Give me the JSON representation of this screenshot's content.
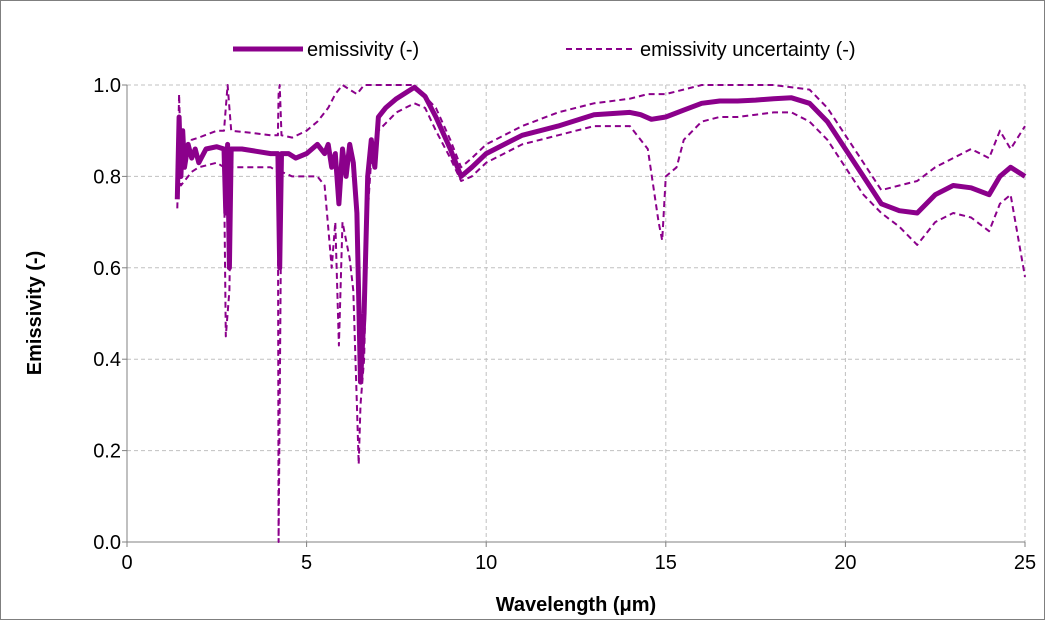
{
  "chart_data": {
    "type": "line",
    "title": "",
    "xlabel": "Wavelength (μm)",
    "ylabel": "Emissivity (-)",
    "xlim": [
      0,
      25
    ],
    "ylim": [
      0,
      1.0
    ],
    "x_ticks": [
      0,
      5,
      10,
      15,
      20,
      25
    ],
    "y_ticks": [
      0.0,
      0.2,
      0.4,
      0.6,
      0.8,
      1.0
    ],
    "x_tick_labels": [
      "0",
      "5",
      "10",
      "15",
      "20",
      "25"
    ],
    "y_tick_labels": [
      "0.0",
      "0.2",
      "0.4",
      "0.6",
      "0.8",
      "1.0"
    ],
    "grid": true,
    "legend_position": "top",
    "colors": {
      "series": "#8b008b",
      "grid": "#c0c0c0",
      "axis": "#808080"
    },
    "series": [
      {
        "name": "emissivity (-)",
        "style": "solid",
        "points": [
          [
            1.4,
            0.75
          ],
          [
            1.45,
            0.93
          ],
          [
            1.5,
            0.8
          ],
          [
            1.55,
            0.9
          ],
          [
            1.6,
            0.82
          ],
          [
            1.7,
            0.87
          ],
          [
            1.8,
            0.84
          ],
          [
            1.9,
            0.86
          ],
          [
            2.0,
            0.83
          ],
          [
            2.2,
            0.86
          ],
          [
            2.5,
            0.865
          ],
          [
            2.7,
            0.86
          ],
          [
            2.75,
            0.72
          ],
          [
            2.8,
            0.87
          ],
          [
            2.85,
            0.6
          ],
          [
            2.9,
            0.86
          ],
          [
            3.2,
            0.86
          ],
          [
            3.6,
            0.855
          ],
          [
            4.0,
            0.85
          ],
          [
            4.2,
            0.85
          ],
          [
            4.25,
            0.6
          ],
          [
            4.3,
            0.85
          ],
          [
            4.5,
            0.85
          ],
          [
            4.7,
            0.84
          ],
          [
            5.0,
            0.85
          ],
          [
            5.3,
            0.87
          ],
          [
            5.5,
            0.85
          ],
          [
            5.6,
            0.87
          ],
          [
            5.7,
            0.82
          ],
          [
            5.8,
            0.85
          ],
          [
            5.9,
            0.74
          ],
          [
            6.0,
            0.86
          ],
          [
            6.1,
            0.8
          ],
          [
            6.2,
            0.87
          ],
          [
            6.3,
            0.83
          ],
          [
            6.4,
            0.72
          ],
          [
            6.5,
            0.35
          ],
          [
            6.6,
            0.5
          ],
          [
            6.7,
            0.8
          ],
          [
            6.8,
            0.88
          ],
          [
            6.9,
            0.82
          ],
          [
            7.0,
            0.93
          ],
          [
            7.2,
            0.95
          ],
          [
            7.5,
            0.97
          ],
          [
            7.8,
            0.985
          ],
          [
            8.0,
            0.995
          ],
          [
            8.3,
            0.975
          ],
          [
            8.6,
            0.93
          ],
          [
            9.0,
            0.86
          ],
          [
            9.3,
            0.8
          ],
          [
            9.6,
            0.82
          ],
          [
            10.0,
            0.85
          ],
          [
            11.0,
            0.89
          ],
          [
            12.0,
            0.91
          ],
          [
            13.0,
            0.935
          ],
          [
            14.0,
            0.94
          ],
          [
            14.3,
            0.935
          ],
          [
            14.6,
            0.925
          ],
          [
            15.0,
            0.93
          ],
          [
            15.5,
            0.945
          ],
          [
            16.0,
            0.96
          ],
          [
            16.5,
            0.965
          ],
          [
            17.0,
            0.965
          ],
          [
            17.5,
            0.967
          ],
          [
            18.0,
            0.97
          ],
          [
            18.5,
            0.972
          ],
          [
            19.0,
            0.96
          ],
          [
            19.5,
            0.92
          ],
          [
            20.0,
            0.86
          ],
          [
            20.5,
            0.8
          ],
          [
            21.0,
            0.74
          ],
          [
            21.5,
            0.725
          ],
          [
            22.0,
            0.72
          ],
          [
            22.5,
            0.76
          ],
          [
            23.0,
            0.78
          ],
          [
            23.5,
            0.775
          ],
          [
            24.0,
            0.76
          ],
          [
            24.3,
            0.8
          ],
          [
            24.6,
            0.82
          ],
          [
            25.0,
            0.8
          ]
        ]
      },
      {
        "name": "emissivity uncertainty (-)",
        "style": "dashed",
        "points": [
          [
            1.4,
            0.79
          ],
          [
            1.45,
            0.98
          ],
          [
            1.5,
            0.83
          ],
          [
            1.6,
            0.85
          ],
          [
            1.8,
            0.88
          ],
          [
            2.0,
            0.885
          ],
          [
            2.5,
            0.9
          ],
          [
            2.7,
            0.9
          ],
          [
            2.75,
            0.95
          ],
          [
            2.8,
            1.0
          ],
          [
            2.9,
            0.9
          ],
          [
            3.5,
            0.895
          ],
          [
            4.0,
            0.89
          ],
          [
            4.2,
            0.89
          ],
          [
            4.22,
            0.98
          ],
          [
            4.25,
            1.0
          ],
          [
            4.3,
            0.89
          ],
          [
            4.6,
            0.885
          ],
          [
            5.0,
            0.9
          ],
          [
            5.3,
            0.92
          ],
          [
            5.6,
            0.95
          ],
          [
            5.8,
            0.98
          ],
          [
            6.0,
            1.0
          ],
          [
            6.2,
            0.99
          ],
          [
            6.4,
            0.98
          ],
          [
            6.6,
            1.0
          ],
          [
            7.0,
            1.0
          ],
          [
            8.0,
            1.0
          ],
          [
            8.6,
            0.95
          ],
          [
            9.0,
            0.88
          ],
          [
            9.3,
            0.82
          ],
          [
            9.6,
            0.84
          ],
          [
            10.0,
            0.87
          ],
          [
            11.0,
            0.91
          ],
          [
            12.0,
            0.94
          ],
          [
            13.0,
            0.96
          ],
          [
            14.0,
            0.97
          ],
          [
            14.5,
            0.98
          ],
          [
            15.0,
            0.98
          ],
          [
            16.0,
            1.0
          ],
          [
            17.0,
            1.0
          ],
          [
            18.0,
            1.0
          ],
          [
            19.0,
            0.99
          ],
          [
            19.5,
            0.95
          ],
          [
            20.0,
            0.89
          ],
          [
            20.5,
            0.83
          ],
          [
            21.0,
            0.77
          ],
          [
            21.5,
            0.78
          ],
          [
            22.0,
            0.79
          ],
          [
            22.5,
            0.82
          ],
          [
            23.0,
            0.84
          ],
          [
            23.5,
            0.86
          ],
          [
            24.0,
            0.84
          ],
          [
            24.3,
            0.9
          ],
          [
            24.6,
            0.86
          ],
          [
            25.0,
            0.91
          ]
        ]
      },
      {
        "name": "",
        "style": "dashed",
        "points": [
          [
            1.4,
            0.73
          ],
          [
            1.45,
            0.9
          ],
          [
            1.5,
            0.78
          ],
          [
            1.6,
            0.79
          ],
          [
            1.8,
            0.81
          ],
          [
            2.0,
            0.82
          ],
          [
            2.5,
            0.83
          ],
          [
            2.7,
            0.82
          ],
          [
            2.75,
            0.45
          ],
          [
            2.85,
            0.55
          ],
          [
            2.9,
            0.82
          ],
          [
            3.5,
            0.82
          ],
          [
            4.0,
            0.82
          ],
          [
            4.2,
            0.81
          ],
          [
            4.22,
            0.0
          ],
          [
            4.3,
            0.81
          ],
          [
            4.6,
            0.8
          ],
          [
            5.0,
            0.8
          ],
          [
            5.3,
            0.8
          ],
          [
            5.5,
            0.78
          ],
          [
            5.7,
            0.6
          ],
          [
            5.8,
            0.7
          ],
          [
            5.9,
            0.43
          ],
          [
            6.0,
            0.7
          ],
          [
            6.2,
            0.62
          ],
          [
            6.3,
            0.55
          ],
          [
            6.4,
            0.3
          ],
          [
            6.45,
            0.17
          ],
          [
            6.5,
            0.3
          ],
          [
            6.6,
            0.4
          ],
          [
            6.7,
            0.72
          ],
          [
            6.8,
            0.84
          ],
          [
            7.0,
            0.9
          ],
          [
            7.5,
            0.94
          ],
          [
            8.0,
            0.96
          ],
          [
            8.3,
            0.95
          ],
          [
            8.6,
            0.9
          ],
          [
            9.0,
            0.84
          ],
          [
            9.3,
            0.79
          ],
          [
            9.6,
            0.8
          ],
          [
            10.0,
            0.83
          ],
          [
            11.0,
            0.87
          ],
          [
            12.0,
            0.89
          ],
          [
            13.0,
            0.91
          ],
          [
            14.0,
            0.91
          ],
          [
            14.5,
            0.86
          ],
          [
            14.8,
            0.7
          ],
          [
            14.9,
            0.66
          ],
          [
            15.0,
            0.8
          ],
          [
            15.3,
            0.82
          ],
          [
            15.5,
            0.88
          ],
          [
            16.0,
            0.92
          ],
          [
            16.5,
            0.93
          ],
          [
            17.0,
            0.93
          ],
          [
            17.5,
            0.935
          ],
          [
            18.0,
            0.94
          ],
          [
            18.5,
            0.94
          ],
          [
            19.0,
            0.92
          ],
          [
            19.5,
            0.88
          ],
          [
            20.0,
            0.82
          ],
          [
            20.5,
            0.76
          ],
          [
            21.0,
            0.72
          ],
          [
            21.5,
            0.69
          ],
          [
            22.0,
            0.65
          ],
          [
            22.5,
            0.7
          ],
          [
            23.0,
            0.72
          ],
          [
            23.5,
            0.71
          ],
          [
            24.0,
            0.68
          ],
          [
            24.3,
            0.74
          ],
          [
            24.6,
            0.76
          ],
          [
            25.0,
            0.58
          ]
        ]
      }
    ]
  }
}
